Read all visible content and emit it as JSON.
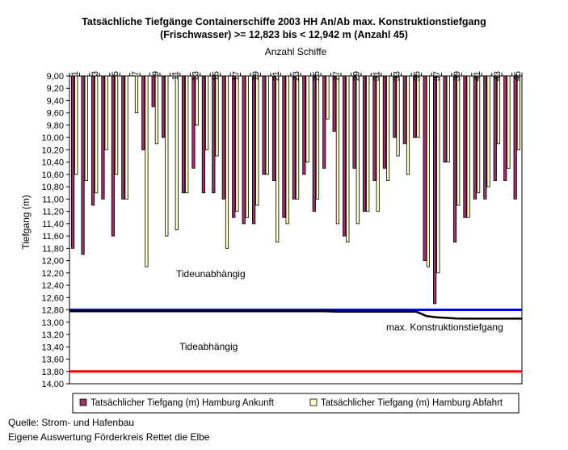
{
  "chart_data": {
    "type": "bar",
    "title_line1": "Tatsächliche Tiefgänge Containerschiffe 2003 HH An/Ab max. Konstruktionstiefgang",
    "title_line2": "(Frischwasser) >= 12,823 bis < 12,942 m (Anzahl 45)",
    "xlabel": "Anzahl Schiffe",
    "ylabel": "Tiefgang (m)",
    "y_inverted": true,
    "ylim": [
      9.0,
      14.0
    ],
    "y_tick_step": 0.2,
    "y_tick_labels": [
      "9,00",
      "9,20",
      "9,40",
      "9,60",
      "9,80",
      "10,00",
      "10,20",
      "10,40",
      "10,60",
      "10,80",
      "11,00",
      "11,20",
      "11,40",
      "11,60",
      "11,80",
      "12,00",
      "12,20",
      "12,40",
      "12,60",
      "12,80",
      "13,00",
      "13,20",
      "13,40",
      "13,60",
      "13,80",
      "14,00"
    ],
    "x_tick_labels": [
      "1",
      "3",
      "5",
      "7",
      "9",
      "11",
      "13",
      "15",
      "17",
      "19",
      "21",
      "23",
      "25",
      "27",
      "29",
      "31",
      "33",
      "35",
      "37",
      "39",
      "41",
      "43",
      "45"
    ],
    "categories": [
      1,
      2,
      3,
      4,
      5,
      6,
      7,
      8,
      9,
      10,
      11,
      12,
      13,
      14,
      15,
      16,
      17,
      18,
      19,
      20,
      21,
      22,
      23,
      24,
      25,
      26,
      27,
      28,
      29,
      30,
      31,
      32,
      33,
      34,
      35,
      36,
      37,
      38,
      39,
      40,
      41,
      42,
      43,
      44,
      45
    ],
    "series": [
      {
        "name": "Tatsächlicher Tiefgang (m) Hamburg Ankunft",
        "color": "#993366",
        "values": [
          11.8,
          11.9,
          11.1,
          11.0,
          11.6,
          11.0,
          null,
          10.2,
          9.5,
          10.0,
          null,
          10.9,
          10.5,
          10.9,
          10.9,
          11.0,
          11.3,
          11.4,
          11.4,
          10.6,
          10.7,
          11.3,
          11.0,
          10.6,
          11.2,
          10.5,
          9.9,
          11.6,
          10.5,
          11.2,
          10.7,
          10.5,
          10.0,
          10.1,
          10.0,
          12.0,
          12.7,
          10.4,
          11.7,
          11.3,
          11.0,
          11.0,
          10.7,
          10.7,
          11.0
        ]
      },
      {
        "name": "Tatsächlicher Tiefgang (m) Hamburg Abfahrt",
        "color": "#ffffcc",
        "values": [
          10.6,
          10.7,
          10.9,
          10.2,
          10.6,
          11.0,
          9.6,
          12.1,
          10.1,
          11.6,
          11.5,
          10.9,
          9.8,
          10.2,
          10.3,
          11.8,
          11.2,
          11.3,
          11.1,
          10.6,
          11.7,
          11.4,
          11.0,
          10.4,
          11.0,
          9.7,
          11.4,
          11.7,
          11.4,
          11.2,
          11.2,
          10.7,
          10.3,
          10.6,
          10.0,
          12.1,
          12.2,
          10.4,
          11.1,
          11.3,
          10.9,
          10.8,
          10.1,
          10.5,
          10.2
        ]
      }
    ],
    "reference_lines": [
      {
        "name": "Tideunabhängig",
        "value": 12.8,
        "color": "#0000ff"
      },
      {
        "name": "Tideabhängig",
        "value": 13.8,
        "color": "#ff0000"
      }
    ],
    "max_line": {
      "name": "max. Konstruktionstiefgang",
      "color": "#000000",
      "values": [
        12.823,
        12.823,
        12.823,
        12.823,
        12.823,
        12.823,
        12.823,
        12.823,
        12.823,
        12.823,
        12.823,
        12.823,
        12.823,
        12.823,
        12.823,
        12.823,
        12.823,
        12.823,
        12.823,
        12.823,
        12.823,
        12.823,
        12.823,
        12.823,
        12.823,
        12.823,
        12.83,
        12.83,
        12.83,
        12.83,
        12.83,
        12.83,
        12.83,
        12.83,
        12.83,
        12.9,
        12.92,
        12.93,
        12.94,
        12.942,
        12.942,
        12.942,
        12.942,
        12.942,
        12.942
      ]
    },
    "annotations": {
      "tideunabhaengig": "Tideunabhängig",
      "tideabhaengig": "Tideabhängig",
      "max_line_label": "max. Konstruktionstiefgang"
    },
    "legend": {
      "placement": "bottom",
      "items": [
        "Tatsächlicher Tiefgang (m) Hamburg Ankunft",
        "Tatsächlicher Tiefgang (m) Hamburg Abfahrt"
      ]
    },
    "grid": false
  },
  "source_line1": "Quelle: Strom- und Hafenbau",
  "source_line2": "Eigene Auswertung Förderkreis Rettet die Elbe"
}
